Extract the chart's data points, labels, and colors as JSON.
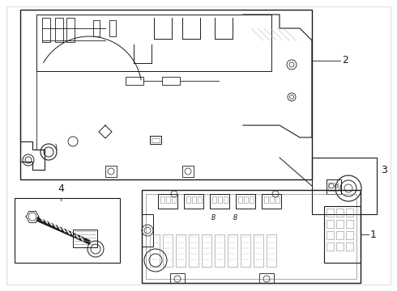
{
  "background_color": "#ffffff",
  "border_color": "#000000",
  "text_color": "#000000",
  "label_1": "1",
  "label_2": "2",
  "label_3": "3",
  "label_4": "4",
  "fig_width": 4.9,
  "fig_height": 3.6,
  "dpi": 100,
  "line_color": "#1a1a1a",
  "gray": "#888888",
  "lgray": "#bbbbbb"
}
